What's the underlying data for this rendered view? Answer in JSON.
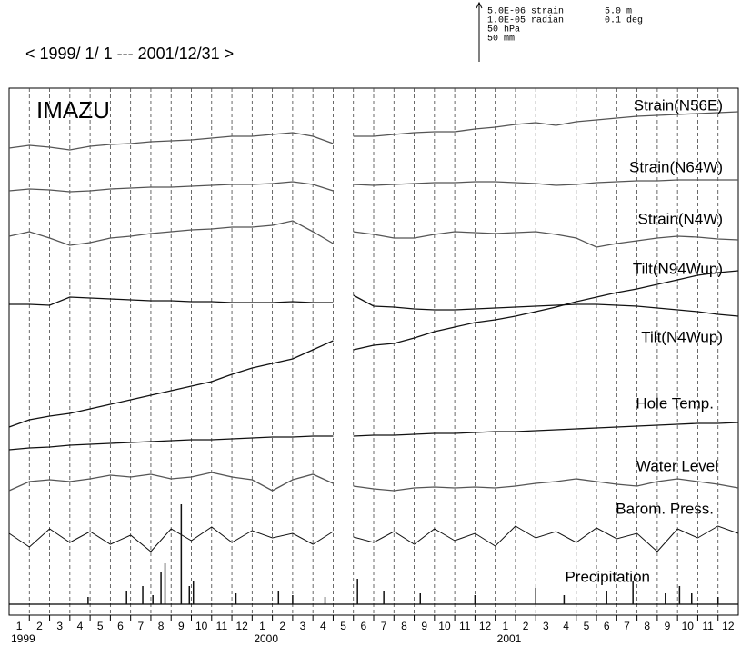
{
  "chart_data": {
    "type": "line",
    "title": "< 1999/ 1/ 1 --- 2001/12/31 >",
    "station": "IMAZU",
    "scale_legend": [
      "5.0E-06 strain",
      "1.0E-05 radian",
      "50 hPa",
      "50 mm",
      "5.0 m",
      "0.1 deg"
    ],
    "xlim": [
      0,
      36
    ],
    "ylim": [
      0,
      580
    ],
    "xgrid": [
      1,
      2,
      3,
      4,
      5,
      6,
      7,
      8,
      9,
      10,
      11,
      12,
      13,
      14,
      15,
      16,
      17,
      18,
      19,
      20,
      21,
      22,
      23,
      24,
      25,
      26,
      27,
      28,
      29,
      30,
      31,
      32,
      33,
      34,
      35
    ],
    "xticks": [
      {
        "value": 0.5,
        "label": "1"
      },
      {
        "value": 1.5,
        "label": "2"
      },
      {
        "value": 2.5,
        "label": "3"
      },
      {
        "value": 3.5,
        "label": "4"
      },
      {
        "value": 4.5,
        "label": "5"
      },
      {
        "value": 5.5,
        "label": "6"
      },
      {
        "value": 6.5,
        "label": "7"
      },
      {
        "value": 7.5,
        "label": "8"
      },
      {
        "value": 8.5,
        "label": "9"
      },
      {
        "value": 9.5,
        "label": "10"
      },
      {
        "value": 10.5,
        "label": "11"
      },
      {
        "value": 11.5,
        "label": "12"
      },
      {
        "value": 12.5,
        "label": "1"
      },
      {
        "value": 13.5,
        "label": "2"
      },
      {
        "value": 14.5,
        "label": "3"
      },
      {
        "value": 15.5,
        "label": "4"
      },
      {
        "value": 16.5,
        "label": "5"
      },
      {
        "value": 17.5,
        "label": "6"
      },
      {
        "value": 18.5,
        "label": "7"
      },
      {
        "value": 19.5,
        "label": "8"
      },
      {
        "value": 20.5,
        "label": "9"
      },
      {
        "value": 21.5,
        "label": "10"
      },
      {
        "value": 22.5,
        "label": "11"
      },
      {
        "value": 23.5,
        "label": "12"
      },
      {
        "value": 24.5,
        "label": "1"
      },
      {
        "value": 25.5,
        "label": "2"
      },
      {
        "value": 26.5,
        "label": "3"
      },
      {
        "value": 27.5,
        "label": "4"
      },
      {
        "value": 28.5,
        "label": "5"
      },
      {
        "value": 29.5,
        "label": "6"
      },
      {
        "value": 30.5,
        "label": "7"
      },
      {
        "value": 31.5,
        "label": "8"
      },
      {
        "value": 32.5,
        "label": "9"
      },
      {
        "value": 33.5,
        "label": "10"
      },
      {
        "value": 34.5,
        "label": "11"
      },
      {
        "value": 35.5,
        "label": "12"
      }
    ],
    "year_ticks": [
      {
        "value": 0,
        "label": "1999"
      },
      {
        "value": 12,
        "label": "2000"
      },
      {
        "value": 24,
        "label": "2001"
      }
    ],
    "x": [
      0,
      1,
      2,
      3,
      4,
      5,
      6,
      7,
      8,
      9,
      10,
      11,
      12,
      13,
      14,
      15,
      16,
      16.5,
      17,
      18,
      19,
      20,
      21,
      22,
      23,
      24,
      25,
      26,
      27,
      28,
      29,
      30,
      31,
      32,
      33,
      34,
      35,
      36
    ],
    "series": [
      {
        "name": "Strain(N56E)",
        "color": "#555555",
        "values": [
          514,
          517,
          515,
          512,
          516,
          518,
          519,
          521,
          522,
          523,
          525,
          527,
          527,
          529,
          531,
          527,
          519,
          null,
          527,
          527,
          529,
          531,
          532,
          532,
          535,
          537,
          540,
          542,
          539,
          543,
          545,
          547,
          549,
          550,
          551,
          552,
          553,
          554
        ]
      },
      {
        "name": "Strain(N64W)",
        "color": "#555555",
        "values": [
          467,
          469,
          468,
          466,
          467,
          469,
          470,
          471,
          471,
          472,
          473,
          474,
          474,
          475,
          477,
          474,
          467,
          null,
          474,
          473,
          474,
          475,
          476,
          476,
          477,
          477,
          476,
          475,
          473,
          474,
          476,
          477,
          478,
          478,
          479,
          479,
          479,
          479
        ]
      },
      {
        "name": "Strain(N4W)",
        "color": "#555555",
        "values": [
          417,
          422,
          415,
          407,
          410,
          415,
          417,
          420,
          422,
          424,
          425,
          427,
          427,
          429,
          434,
          422,
          409,
          null,
          422,
          419,
          415,
          415,
          419,
          422,
          421,
          420,
          421,
          422,
          419,
          415,
          405,
          409,
          412,
          415,
          417,
          416,
          414,
          413
        ]
      },
      {
        "name": "Tilt(N94Wup)",
        "color": "#111111",
        "values": [
          342,
          342,
          341,
          350,
          349,
          348,
          347,
          346,
          346,
          345,
          345,
          344,
          344,
          344,
          345,
          344,
          344,
          null,
          352,
          340,
          339,
          337,
          336,
          336,
          337,
          338,
          339,
          340,
          341,
          342,
          342,
          341,
          340,
          338,
          336,
          334,
          331,
          329
        ]
      },
      {
        "name": "Tilt(N4Wup)",
        "color": "#111111",
        "values": [
          207,
          215,
          219,
          222,
          227,
          232,
          237,
          242,
          247,
          252,
          257,
          265,
          272,
          277,
          282,
          292,
          302,
          null,
          292,
          297,
          299,
          305,
          312,
          317,
          322,
          325,
          329,
          334,
          339,
          345,
          350,
          355,
          359,
          364,
          369,
          374,
          377,
          379
        ]
      },
      {
        "name": "Hole Temp.",
        "color": "#111111",
        "values": [
          182,
          184,
          185,
          187,
          188,
          189,
          190,
          191,
          192,
          193,
          193,
          194,
          195,
          196,
          196,
          197,
          197,
          null,
          197,
          198,
          198,
          199,
          200,
          200,
          201,
          202,
          202,
          203,
          204,
          205,
          206,
          207,
          208,
          209,
          210,
          211,
          211,
          212
        ]
      },
      {
        "name": "Water Level",
        "color": "#555555",
        "values": [
          137,
          147,
          149,
          147,
          150,
          154,
          152,
          155,
          150,
          152,
          157,
          152,
          149,
          137,
          149,
          155,
          145,
          null,
          142,
          139,
          137,
          140,
          141,
          140,
          141,
          140,
          142,
          145,
          147,
          150,
          147,
          144,
          142,
          147,
          150,
          147,
          144,
          140
        ]
      },
      {
        "name": "Barom. Press.",
        "color": "#111111",
        "values": [
          90,
          75,
          95,
          80,
          92,
          78,
          88,
          70,
          95,
          82,
          97,
          80,
          93,
          85,
          90,
          78,
          92,
          null,
          86,
          80,
          92,
          78,
          95,
          82,
          90,
          76,
          98,
          85,
          92,
          80,
          96,
          84,
          90,
          70,
          95,
          85,
          98,
          90
        ]
      }
    ],
    "precipitation": {
      "name": "Precipitation",
      "color": "#111111",
      "x": [
        3.9,
        5.8,
        6.6,
        7.1,
        7.5,
        7.7,
        8.5,
        8.9,
        9.1,
        11.2,
        13.3,
        14.0,
        15.6,
        17.2,
        18.5,
        20.3,
        23.0,
        26.0,
        27.4,
        29.5,
        30.8,
        32.4,
        33.1,
        33.7,
        35.0
      ],
      "values": [
        8,
        14,
        20,
        10,
        35,
        45,
        110,
        20,
        25,
        12,
        15,
        10,
        8,
        28,
        15,
        12,
        10,
        18,
        10,
        14,
        25,
        12,
        20,
        12,
        8
      ]
    }
  }
}
